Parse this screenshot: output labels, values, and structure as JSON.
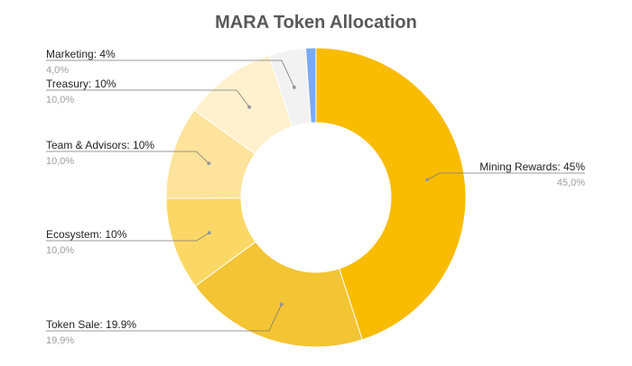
{
  "chart_data": {
    "type": "pie",
    "donut": true,
    "title": "MARA Token Allocation",
    "slices": [
      {
        "name": "Mining Rewards",
        "value": 45.0,
        "label": "Mining Rewards: 45%",
        "sub": "45,0%",
        "color": "#f9bc00"
      },
      {
        "name": "Token Sale",
        "value": 19.9,
        "label": "Token Sale: 19.9%",
        "sub": "19,9%",
        "color": "#f3c433"
      },
      {
        "name": "Ecosystem",
        "value": 10.0,
        "label": "Ecosystem: 10%",
        "sub": "10,0%",
        "color": "#fbd866"
      },
      {
        "name": "Team & Advisors",
        "value": 10.0,
        "label": "Team & Advisors: 10%",
        "sub": "10,0%",
        "color": "#fde39b"
      },
      {
        "name": "Treasury",
        "value": 10.0,
        "label": "Treasury: 10%",
        "sub": "10,0%",
        "color": "#fff1cd"
      },
      {
        "name": "Marketing",
        "value": 4.0,
        "label": "Marketing: 4%",
        "sub": "4,0%",
        "color": "#f2f2f2"
      },
      {
        "name": "",
        "value": 1.1,
        "label": "",
        "sub": "",
        "color": "#7aaaf5"
      }
    ],
    "legend": "none"
  }
}
